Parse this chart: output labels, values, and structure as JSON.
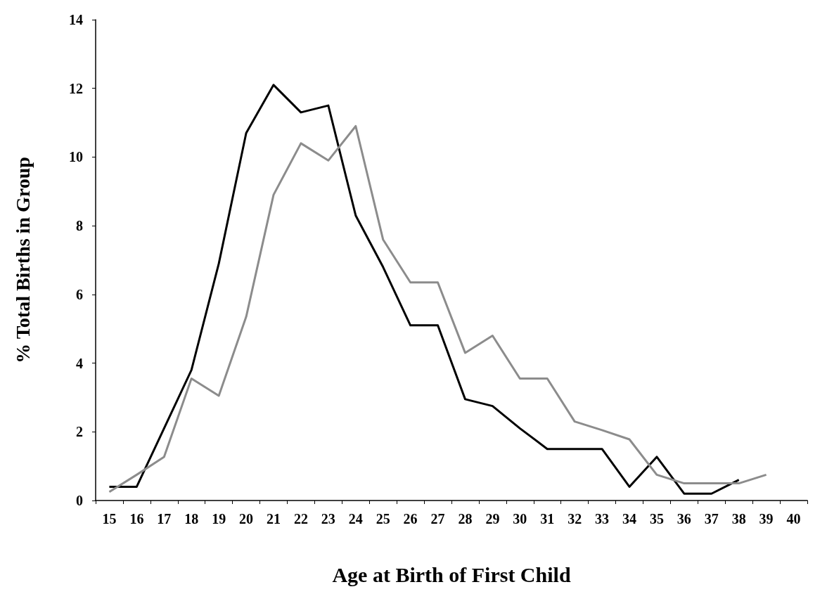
{
  "chart_data": {
    "type": "line",
    "xlabel": "Age at Birth of First Child",
    "ylabel": "% Total Births in Group",
    "categories": [
      "15",
      "16",
      "17",
      "18",
      "19",
      "20",
      "21",
      "22",
      "23",
      "24",
      "25",
      "26",
      "27",
      "28",
      "29",
      "30",
      "31",
      "32",
      "33",
      "34",
      "35",
      "36",
      "37",
      "38",
      "39",
      "40"
    ],
    "series": [
      {
        "color": "#000000",
        "values": [
          0.4,
          0.4,
          2.1,
          3.8,
          6.9,
          10.7,
          12.1,
          11.3,
          11.5,
          8.3,
          6.8,
          5.1,
          5.1,
          2.95,
          2.75,
          2.1,
          1.5,
          1.5,
          1.5,
          0.4,
          1.27,
          0.2,
          0.2,
          0.6,
          null,
          null
        ]
      },
      {
        "color": "#8c8c8c",
        "values": [
          0.25,
          0.75,
          1.27,
          3.55,
          3.05,
          5.35,
          8.9,
          10.4,
          9.9,
          10.9,
          7.6,
          6.35,
          6.35,
          4.3,
          4.8,
          3.55,
          3.55,
          2.3,
          2.05,
          1.78,
          0.75,
          0.5,
          0.5,
          0.5,
          0.75,
          null
        ]
      }
    ],
    "ylim": [
      0,
      14
    ],
    "yticks": [
      0,
      2,
      4,
      6,
      8,
      10,
      12,
      14
    ],
    "grid": false,
    "marker": "none",
    "line_style": "solid"
  }
}
